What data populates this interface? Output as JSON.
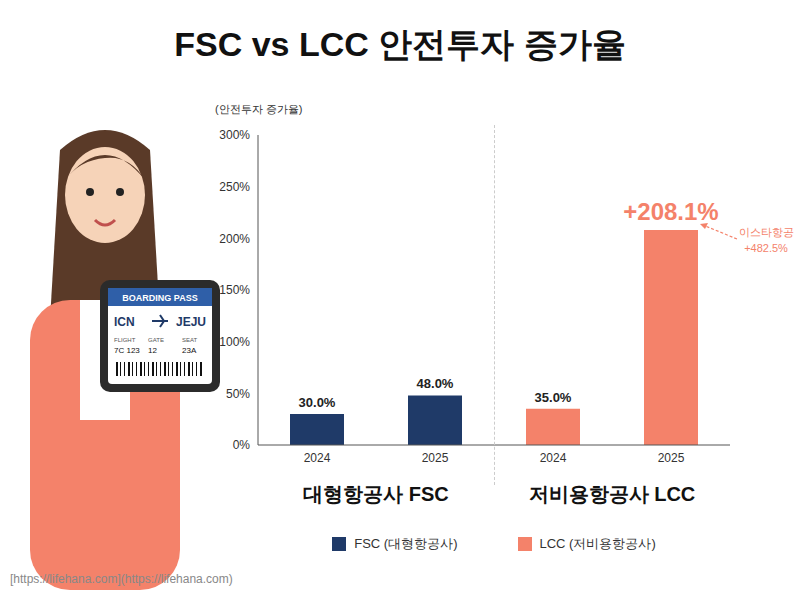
{
  "chart_data": {
    "type": "bar",
    "title": "FSC vs LCC 안전투자 증가율",
    "y_label": "(안전투자 증가율)",
    "categories": [
      "2024",
      "2025",
      "2024",
      "2025"
    ],
    "groups": [
      "대형항공사 FSC",
      "저비용항공사 LCC"
    ],
    "series": [
      {
        "name": "FSC (대형항공사)",
        "color": "#1f3a68",
        "values": [
          30.0,
          48.0,
          null,
          null
        ],
        "value_labels": [
          "30.0%",
          "48.0%",
          null,
          null
        ]
      },
      {
        "name": "LCC (저비용항공사)",
        "color": "#f4826a",
        "values": [
          null,
          null,
          35.0,
          208.1
        ],
        "value_labels": [
          null,
          null,
          "35.0%",
          "+208.1%"
        ]
      }
    ],
    "stacked": true,
    "data_labels": true,
    "ylim": [
      0,
      300
    ],
    "yticks": [
      {
        "value": 0,
        "label": "0%"
      },
      {
        "value": 50,
        "label": "50%"
      },
      {
        "value": 100,
        "label": "100%"
      },
      {
        "value": 150,
        "label": "150%"
      },
      {
        "value": 200,
        "label": "200%"
      },
      {
        "value": 250,
        "label": "250%"
      },
      {
        "value": 300,
        "label": "300%"
      }
    ],
    "grid": false,
    "annotations": [
      {
        "text": [
          "이스타항공",
          "+482.5%"
        ]
      }
    ],
    "source": "[https://lifehana.com](https://lifehana.com)",
    "illustration": {
      "boarding_pass": {
        "header": "BOARDING PASS",
        "from": "ICN",
        "to": "JEJU",
        "fields": [
          {
            "label": "FLIGHT",
            "value": "7C 123"
          },
          {
            "label": "GATE",
            "value": "12"
          },
          {
            "label": "SEAT",
            "value": "23A"
          }
        ]
      }
    }
  }
}
